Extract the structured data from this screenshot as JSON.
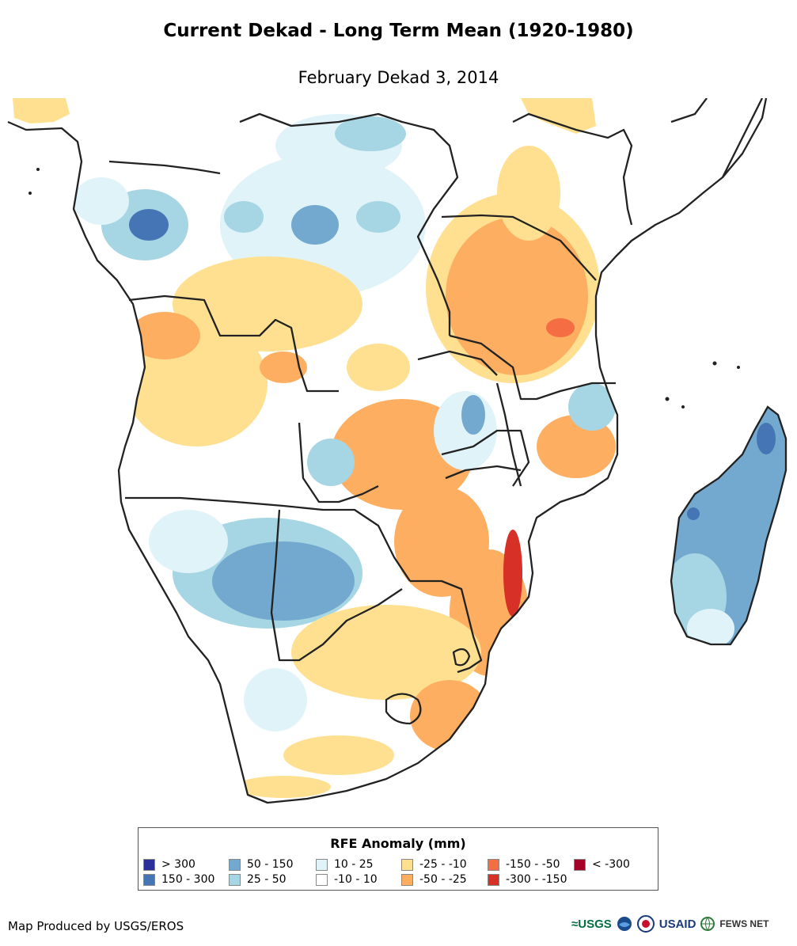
{
  "title": "Current Dekad - Long Term Mean (1920-1980)",
  "subtitle": "February Dekad 3, 2014",
  "legend": {
    "title": "RFE Anomaly (mm)",
    "items": [
      {
        "label": "> 300",
        "color": "#2c2f99"
      },
      {
        "label": "150 - 300",
        "color": "#4575b4"
      },
      {
        "label": "50 - 150",
        "color": "#74a9cf"
      },
      {
        "label": "25 - 50",
        "color": "#a6d5e3"
      },
      {
        "label": "10 - 25",
        "color": "#e0f3f8"
      },
      {
        "label": "-10 - 10",
        "color": "#ffffff"
      },
      {
        "label": "-25 - -10",
        "color": "#fee090"
      },
      {
        "label": "-50 - -25",
        "color": "#fdae61"
      },
      {
        "label": "-150 - -50",
        "color": "#f46d43"
      },
      {
        "label": "-300 - -150",
        "color": "#d73027"
      },
      {
        "label": "< -300",
        "color": "#a50026"
      }
    ]
  },
  "credit": "Map Produced by USGS/EROS",
  "logos": {
    "usgs": "USGS",
    "usaid": "USAID",
    "fewsnet": "FEWS NET"
  }
}
